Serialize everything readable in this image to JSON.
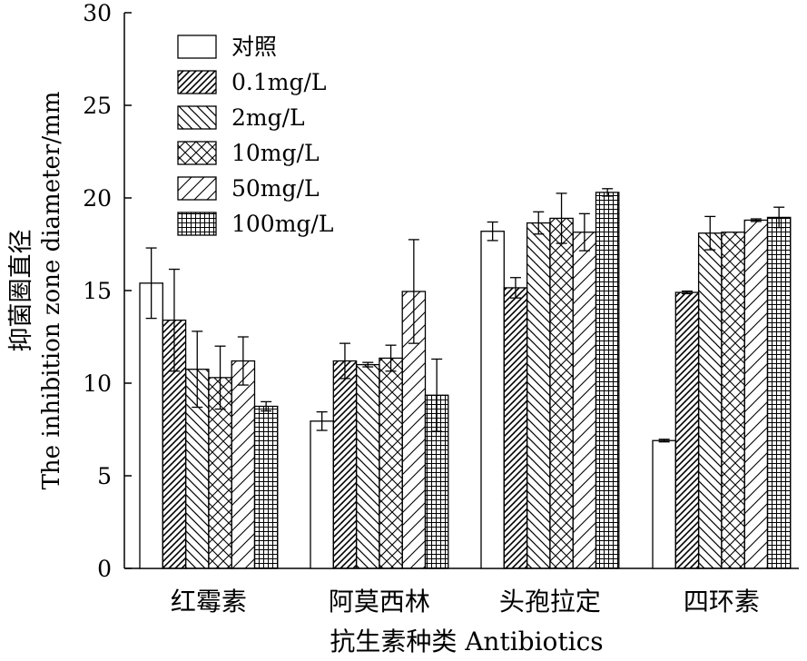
{
  "chart_data": {
    "type": "bar",
    "categories": [
      "红霉素",
      "阿莫西林",
      "头孢拉定",
      "四环素"
    ],
    "series": [
      {
        "name": "对照",
        "pattern": "blank",
        "values": [
          15.4,
          7.95,
          18.2,
          6.9
        ],
        "errors": [
          1.9,
          0.5,
          0.5,
          0.07
        ]
      },
      {
        "name": "0.1mg/L",
        "pattern": "diag-right",
        "values": [
          13.4,
          11.2,
          15.15,
          14.9
        ],
        "errors": [
          2.75,
          0.95,
          0.55,
          0.07
        ]
      },
      {
        "name": "2mg/L",
        "pattern": "diag-left",
        "values": [
          10.75,
          11.0,
          18.65,
          18.1
        ],
        "errors": [
          2.05,
          0.12,
          0.6,
          0.9
        ]
      },
      {
        "name": "10mg/L",
        "pattern": "crosshatch",
        "values": [
          10.3,
          11.35,
          18.9,
          18.15
        ],
        "errors": [
          1.7,
          0.7,
          1.35,
          0.0
        ]
      },
      {
        "name": "50mg/L",
        "pattern": "wide-diag",
        "values": [
          11.2,
          14.95,
          18.15,
          18.8
        ],
        "errors": [
          1.3,
          2.8,
          1.0,
          0.07
        ]
      },
      {
        "name": "100mg/L",
        "pattern": "grid",
        "values": [
          8.75,
          9.35,
          20.3,
          18.95
        ],
        "errors": [
          0.25,
          1.95,
          0.2,
          0.55
        ]
      }
    ],
    "ylabel_cn": "抑菌圈直径",
    "ylabel_en": "The inhibition zone diameter/mm",
    "xlabel": "抗生素种类 Antibiotics",
    "ylim": [
      0,
      30
    ],
    "yticks": [
      0,
      5,
      10,
      15,
      20,
      25,
      30
    ],
    "legend_position": "top-left",
    "grid": false,
    "error_bars": true
  }
}
